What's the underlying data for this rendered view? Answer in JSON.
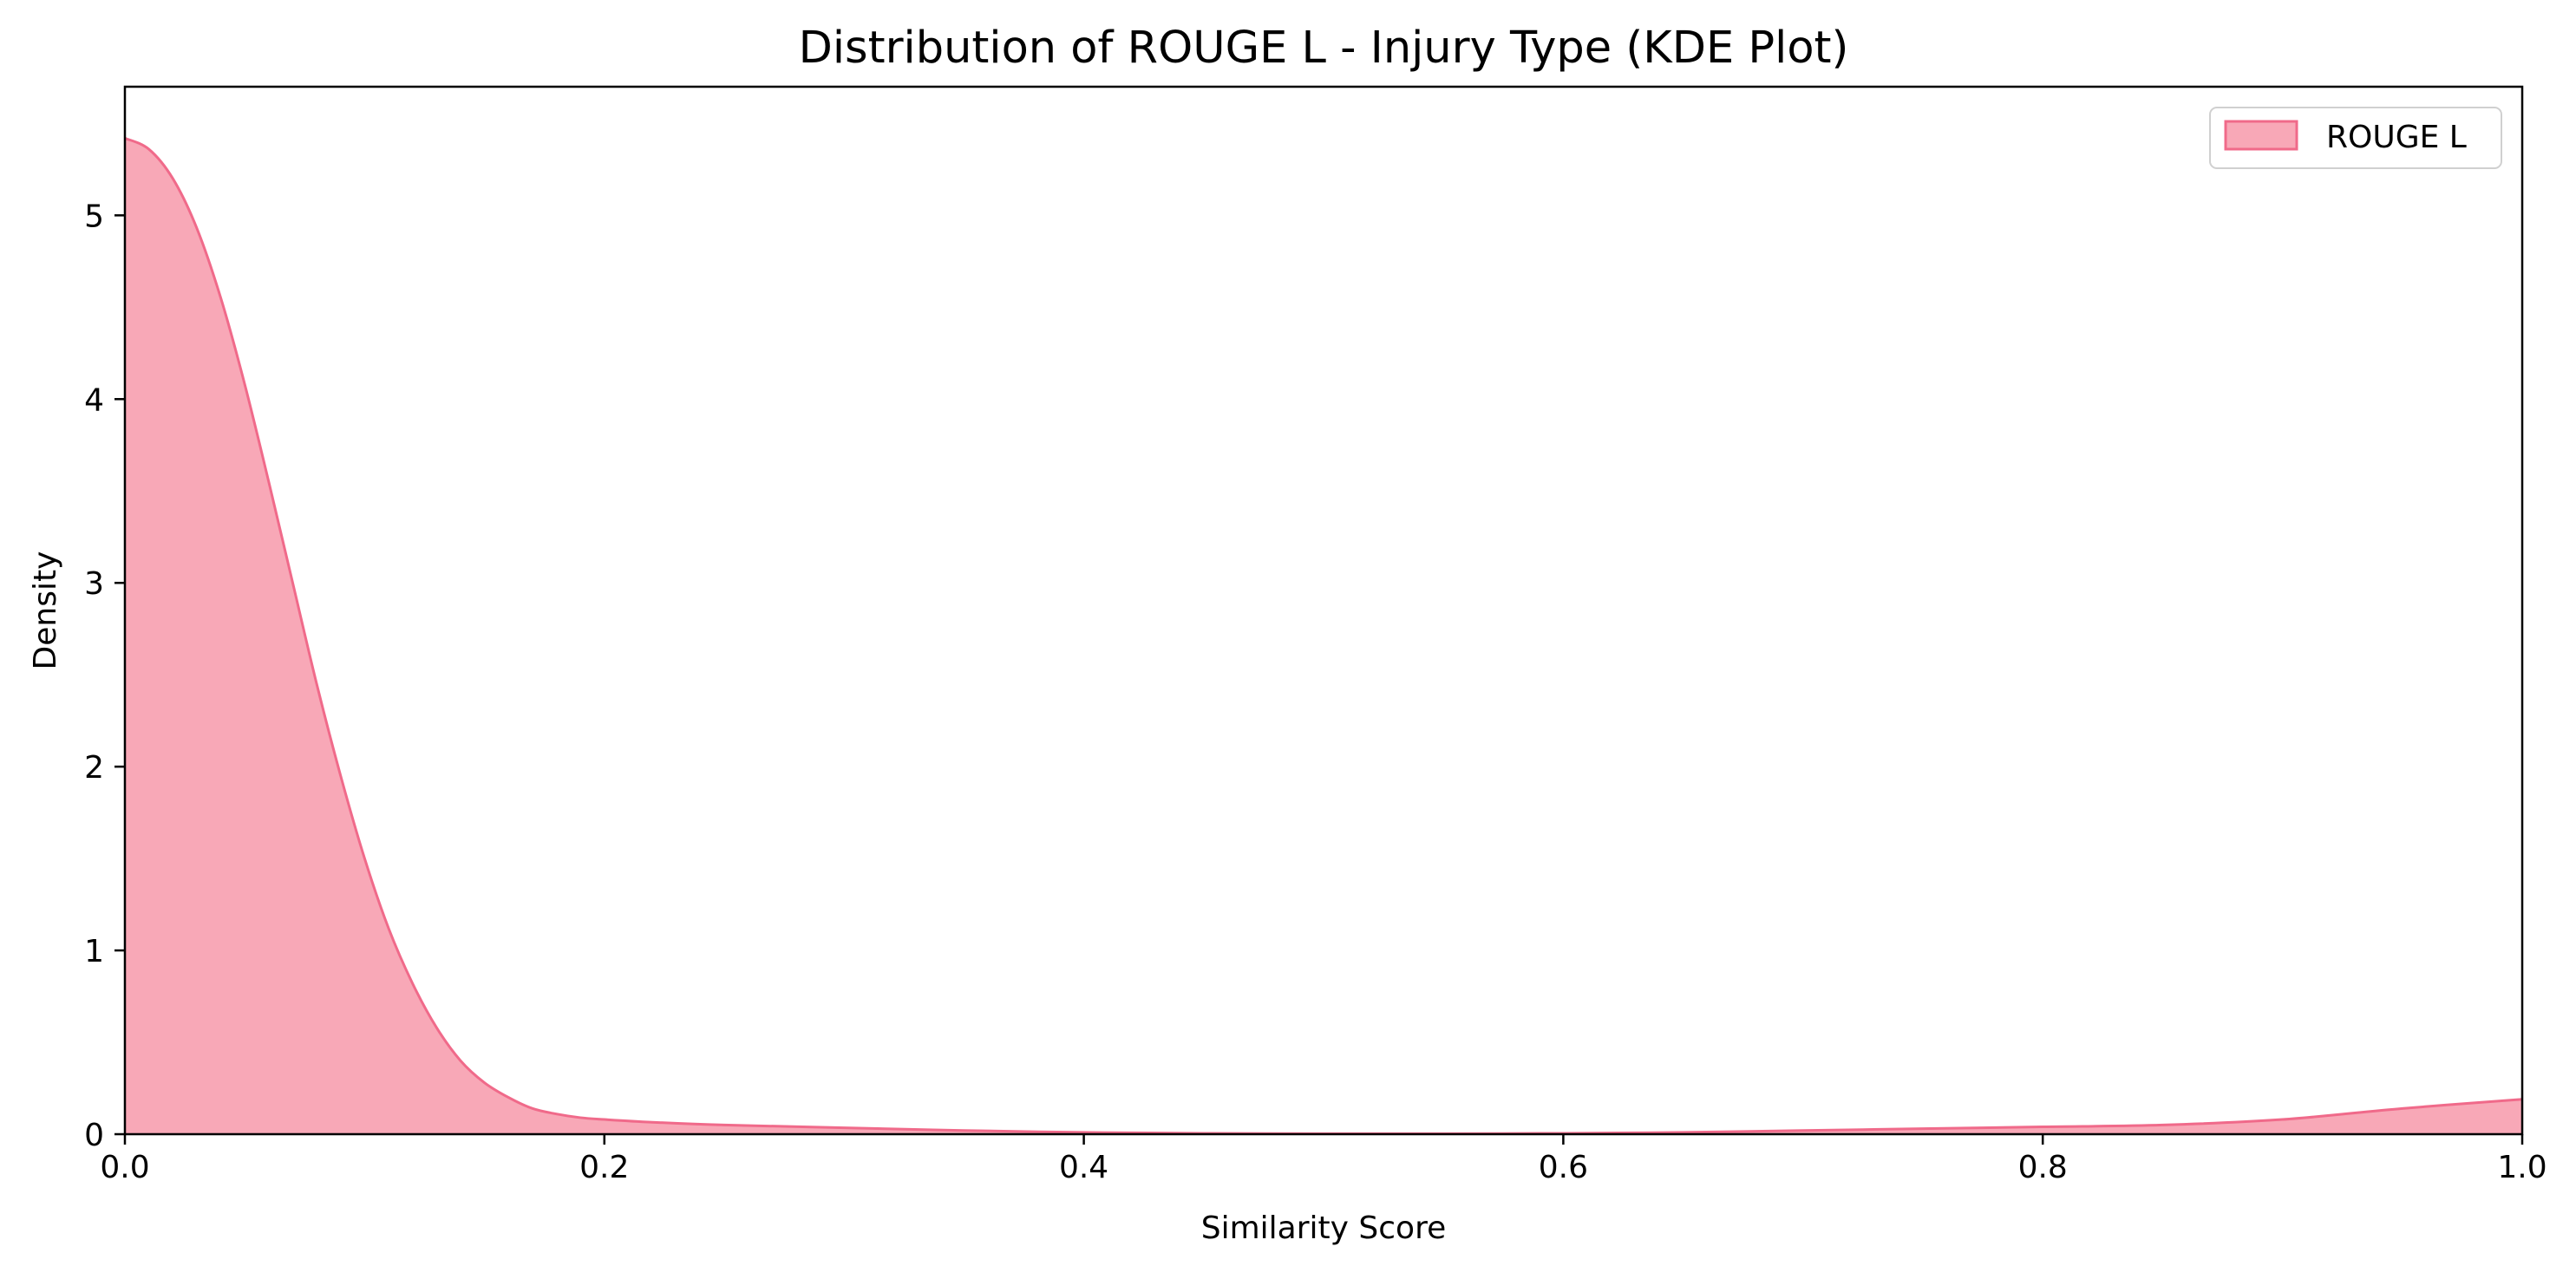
{
  "chart_data": {
    "type": "area",
    "title": "Distribution of ROUGE L - Injury Type (KDE Plot)",
    "xlabel": "Similarity Score",
    "ylabel": "Density",
    "xlim": [
      0.0,
      1.0
    ],
    "ylim": [
      0,
      5.7
    ],
    "x_ticks": [
      "0.0",
      "0.2",
      "0.4",
      "0.6",
      "0.8",
      "1.0"
    ],
    "y_ticks": [
      "0",
      "1",
      "2",
      "3",
      "4",
      "5"
    ],
    "x_tick_values": [
      0.0,
      0.2,
      0.4,
      0.6,
      0.8,
      1.0
    ],
    "y_tick_values": [
      0,
      1,
      2,
      3,
      4,
      5
    ],
    "grid": false,
    "legend_position": "top-right",
    "series": [
      {
        "name": "ROUGE L",
        "fill_color": "#f8a8b7",
        "line_color": "#f06a8a",
        "x": [
          0.0,
          0.01,
          0.02,
          0.03,
          0.04,
          0.05,
          0.06,
          0.07,
          0.08,
          0.09,
          0.1,
          0.11,
          0.12,
          0.13,
          0.14,
          0.15,
          0.16,
          0.17,
          0.18,
          0.19,
          0.2,
          0.22,
          0.25,
          0.3,
          0.35,
          0.4,
          0.45,
          0.5,
          0.55,
          0.6,
          0.65,
          0.7,
          0.75,
          0.8,
          0.85,
          0.9,
          0.95,
          1.0
        ],
        "y": [
          5.42,
          5.36,
          5.2,
          4.93,
          4.55,
          4.08,
          3.55,
          3.0,
          2.45,
          1.95,
          1.5,
          1.12,
          0.82,
          0.58,
          0.4,
          0.28,
          0.2,
          0.14,
          0.11,
          0.09,
          0.08,
          0.065,
          0.05,
          0.035,
          0.02,
          0.01,
          0.005,
          0.003,
          0.003,
          0.005,
          0.01,
          0.02,
          0.03,
          0.04,
          0.05,
          0.08,
          0.14,
          0.19
        ]
      }
    ]
  }
}
